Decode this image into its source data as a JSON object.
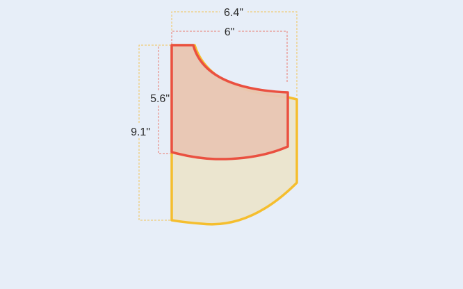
{
  "dimensions": {
    "outer_width": "6.4\"",
    "inner_width": "6\"",
    "inner_height": "5.6\"",
    "outer_height": "9.1\""
  },
  "colors": {
    "background": "#e7eef8",
    "outer_stroke": "#f5be2e",
    "outer_fill": "#ebe5cf",
    "inner_stroke": "#ea5040",
    "inner_fill": "#e9c6b3"
  }
}
